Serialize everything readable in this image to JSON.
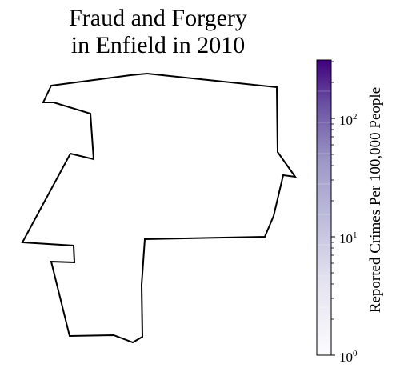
{
  "title_line1": "Fraud and Forgery",
  "title_line2": "in Enfield in 2010",
  "colorbar": {
    "label": "Reported Crimes Per 100,000 People",
    "scale": "log",
    "range": [
      1,
      300
    ],
    "ticks": [
      {
        "base": "10",
        "exp": "0"
      },
      {
        "base": "10",
        "exp": "1"
      },
      {
        "base": "10",
        "exp": "2"
      }
    ],
    "colormap": "Purples",
    "color_low": "#fcfbfd",
    "color_high": "#3f007d"
  },
  "map": {
    "region": "Enfield",
    "fill": "#ffffff",
    "stroke": "#000000"
  }
}
